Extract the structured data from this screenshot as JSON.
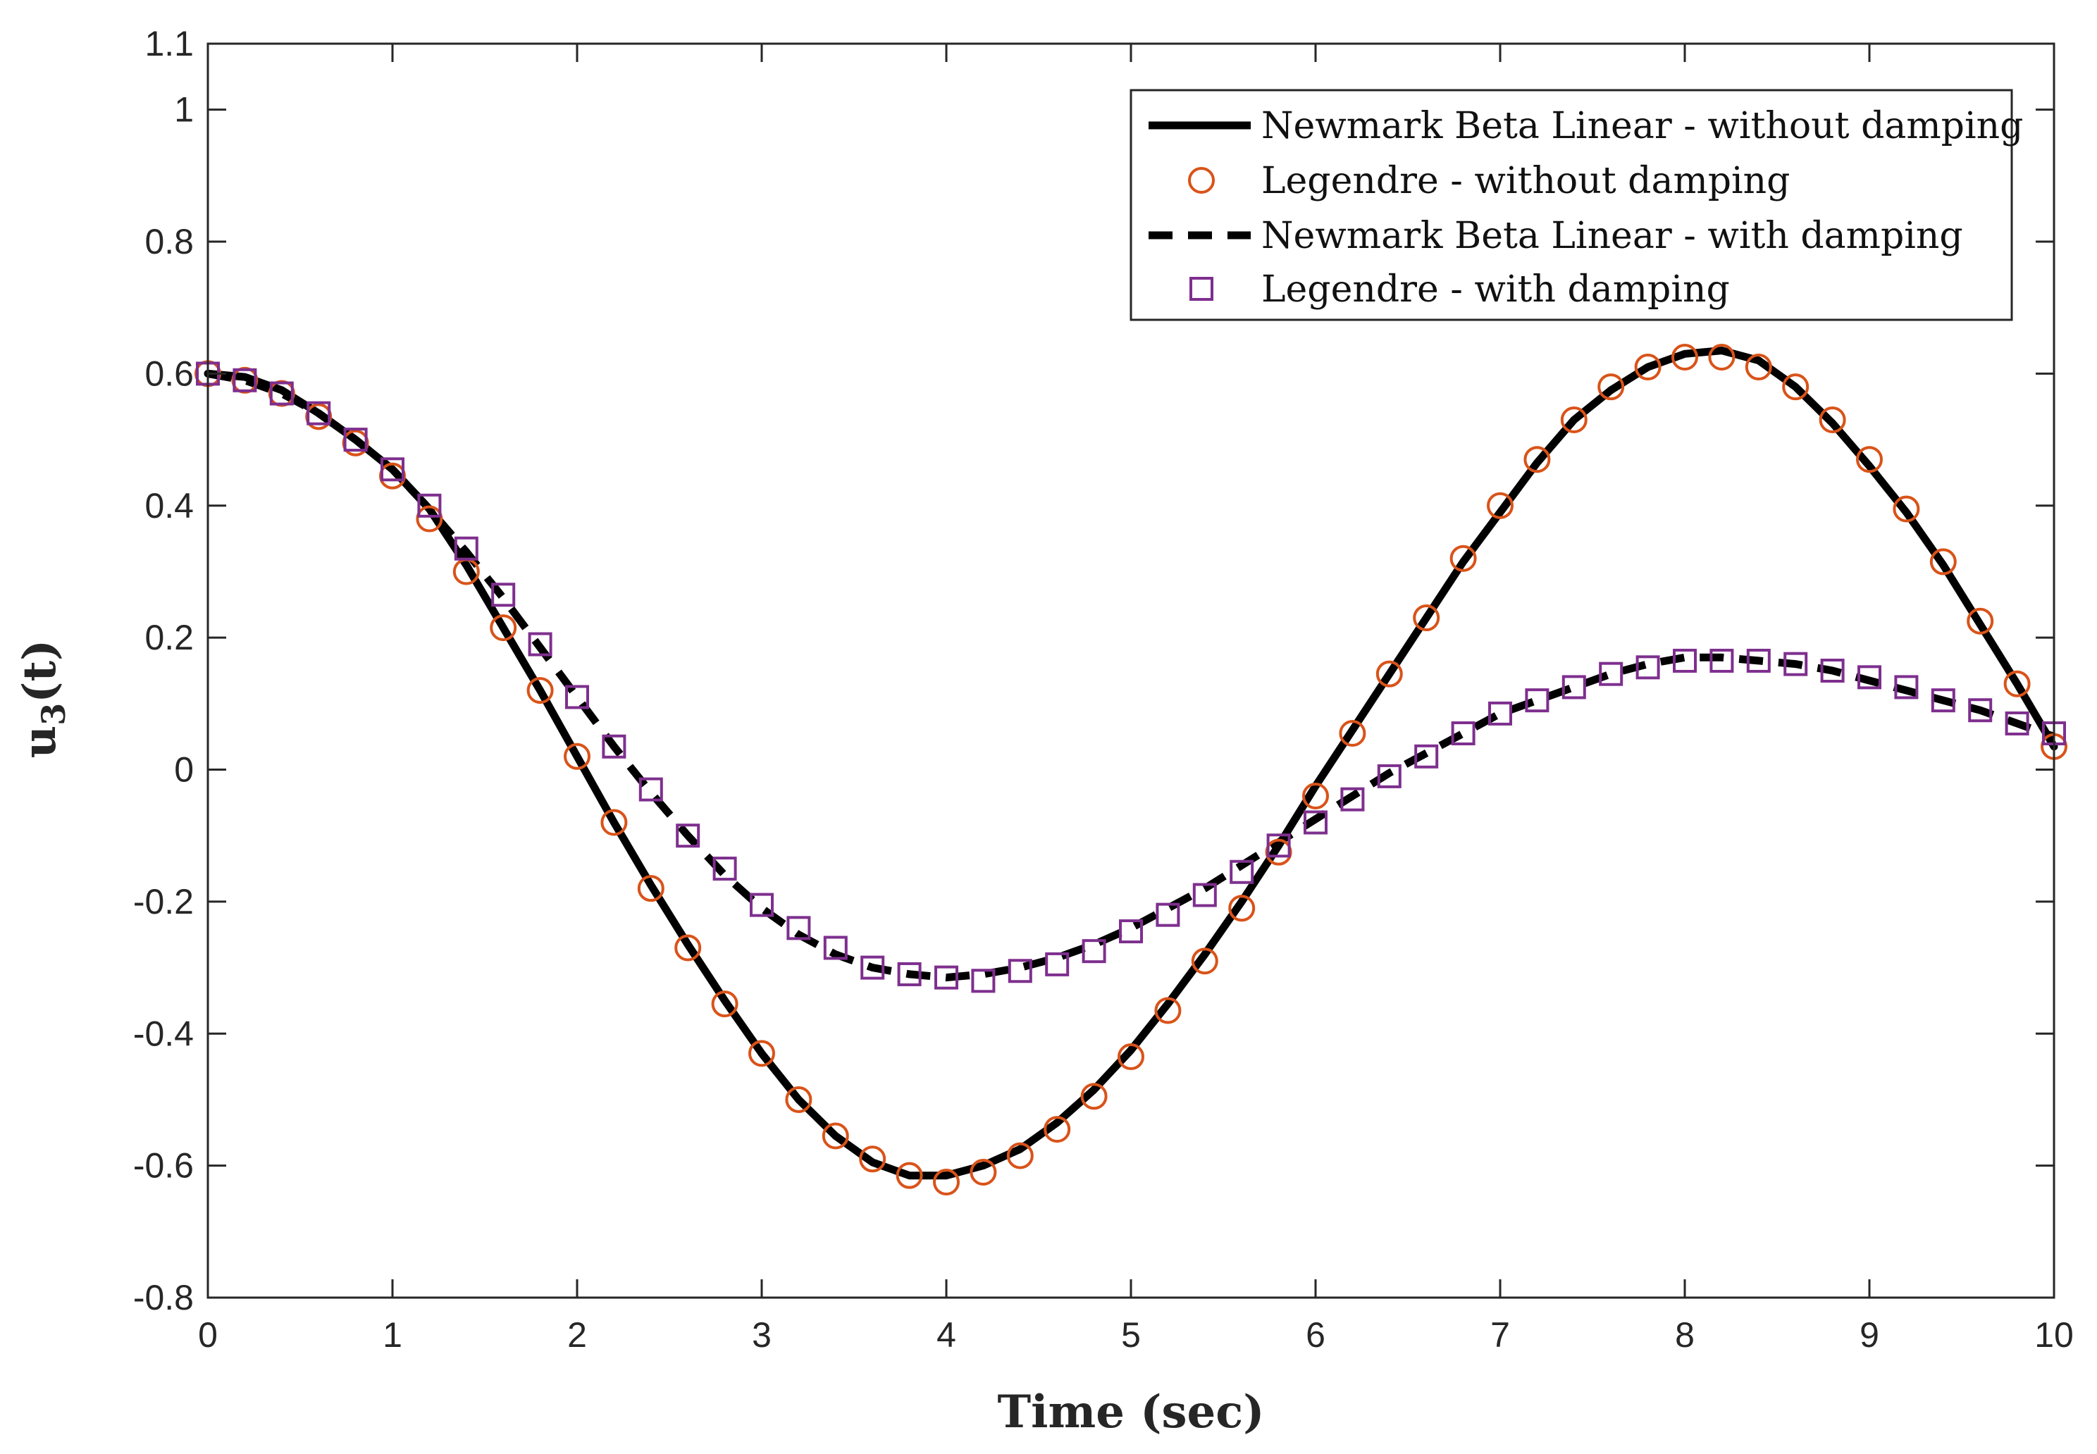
{
  "chart_data": {
    "type": "line",
    "title": "",
    "xlabel": "Time (sec)",
    "ylabel": {
      "base": "u",
      "sub": "3",
      "rest": "(t)"
    },
    "xlim": [
      0,
      10
    ],
    "ylim": [
      -0.8,
      1.1
    ],
    "x_ticks": [
      0,
      1,
      2,
      3,
      4,
      5,
      6,
      7,
      8,
      9,
      10
    ],
    "x_tick_labels": [
      "0",
      "1",
      "2",
      "3",
      "4",
      "5",
      "6",
      "7",
      "8",
      "9",
      "10"
    ],
    "y_ticks": [
      -0.8,
      -0.6,
      -0.4,
      -0.2,
      0,
      0.2,
      0.4,
      0.6,
      0.8,
      1,
      1.1
    ],
    "y_tick_labels": [
      "-0.8",
      "-0.6",
      "-0.4",
      "-0.2",
      "0",
      "0.2",
      "0.4",
      "0.6",
      "0.8",
      "1",
      "1.1"
    ],
    "grid": false,
    "legend_position": "top-right",
    "series": [
      {
        "name": "Newmark Beta Linear - without damping",
        "style": "solid-line",
        "color": "#000000",
        "x": [
          0,
          0.2,
          0.4,
          0.6,
          0.8,
          1.0,
          1.2,
          1.4,
          1.6,
          1.8,
          2.0,
          2.2,
          2.4,
          2.6,
          2.8,
          3.0,
          3.2,
          3.4,
          3.6,
          3.8,
          4.0,
          4.2,
          4.4,
          4.6,
          4.8,
          5.0,
          5.2,
          5.4,
          5.6,
          5.8,
          6.0,
          6.2,
          6.4,
          6.6,
          6.8,
          7.0,
          7.2,
          7.4,
          7.6,
          7.8,
          8.0,
          8.2,
          8.4,
          8.6,
          8.8,
          9.0,
          9.2,
          9.4,
          9.6,
          9.8,
          10.0
        ],
        "y": [
          0.6,
          0.595,
          0.575,
          0.54,
          0.5,
          0.455,
          0.395,
          0.31,
          0.215,
          0.12,
          0.02,
          -0.08,
          -0.175,
          -0.265,
          -0.35,
          -0.43,
          -0.5,
          -0.555,
          -0.595,
          -0.615,
          -0.615,
          -0.6,
          -0.575,
          -0.535,
          -0.485,
          -0.425,
          -0.355,
          -0.28,
          -0.2,
          -0.115,
          -0.025,
          0.06,
          0.145,
          0.23,
          0.315,
          0.39,
          0.465,
          0.53,
          0.575,
          0.61,
          0.63,
          0.635,
          0.62,
          0.58,
          0.525,
          0.46,
          0.39,
          0.31,
          0.22,
          0.13,
          0.035
        ]
      },
      {
        "name": "Legendre - without damping",
        "style": "circle-markers",
        "color": "#D95319",
        "x": [
          0,
          0.2,
          0.4,
          0.6,
          0.8,
          1.0,
          1.2,
          1.4,
          1.6,
          1.8,
          2.0,
          2.2,
          2.4,
          2.6,
          2.8,
          3.0,
          3.2,
          3.4,
          3.6,
          3.8,
          4.0,
          4.2,
          4.4,
          4.6,
          4.8,
          5.0,
          5.2,
          5.4,
          5.6,
          5.8,
          6.0,
          6.2,
          6.4,
          6.6,
          6.8,
          7.0,
          7.2,
          7.4,
          7.6,
          7.8,
          8.0,
          8.2,
          8.4,
          8.6,
          8.8,
          9.0,
          9.2,
          9.4,
          9.6,
          9.8,
          10.0
        ],
        "y": [
          0.6,
          0.59,
          0.57,
          0.535,
          0.495,
          0.445,
          0.38,
          0.3,
          0.215,
          0.12,
          0.02,
          -0.08,
          -0.18,
          -0.27,
          -0.355,
          -0.43,
          -0.5,
          -0.555,
          -0.59,
          -0.615,
          -0.625,
          -0.61,
          -0.585,
          -0.545,
          -0.495,
          -0.435,
          -0.365,
          -0.29,
          -0.21,
          -0.125,
          -0.04,
          0.055,
          0.145,
          0.23,
          0.32,
          0.4,
          0.47,
          0.53,
          0.58,
          0.61,
          0.625,
          0.625,
          0.61,
          0.58,
          0.53,
          0.47,
          0.395,
          0.315,
          0.225,
          0.13,
          0.035
        ]
      },
      {
        "name": "Newmark Beta Linear - with damping",
        "style": "dashed-line",
        "color": "#000000",
        "x": [
          0,
          0.2,
          0.4,
          0.6,
          0.8,
          1.0,
          1.2,
          1.4,
          1.6,
          1.8,
          2.0,
          2.2,
          2.4,
          2.6,
          2.8,
          3.0,
          3.2,
          3.4,
          3.6,
          3.8,
          4.0,
          4.2,
          4.4,
          4.6,
          4.8,
          5.0,
          5.2,
          5.4,
          5.6,
          5.8,
          6.0,
          6.2,
          6.4,
          6.6,
          6.8,
          7.0,
          7.2,
          7.4,
          7.6,
          7.8,
          8.0,
          8.2,
          8.4,
          8.6,
          8.8,
          9.0,
          9.2,
          9.4,
          9.6,
          9.8,
          10.0
        ],
        "y": [
          0.6,
          0.59,
          0.57,
          0.54,
          0.5,
          0.455,
          0.395,
          0.33,
          0.26,
          0.185,
          0.11,
          0.035,
          -0.035,
          -0.1,
          -0.16,
          -0.21,
          -0.25,
          -0.28,
          -0.3,
          -0.31,
          -0.315,
          -0.31,
          -0.3,
          -0.285,
          -0.265,
          -0.24,
          -0.21,
          -0.18,
          -0.145,
          -0.11,
          -0.075,
          -0.04,
          -0.005,
          0.025,
          0.055,
          0.085,
          0.105,
          0.125,
          0.145,
          0.16,
          0.17,
          0.17,
          0.165,
          0.16,
          0.15,
          0.135,
          0.12,
          0.105,
          0.09,
          0.07,
          0.05
        ]
      },
      {
        "name": "Legendre - with damping",
        "style": "square-markers",
        "color": "#7E2F8E",
        "x": [
          0,
          0.2,
          0.4,
          0.6,
          0.8,
          1.0,
          1.2,
          1.4,
          1.6,
          1.8,
          2.0,
          2.2,
          2.4,
          2.6,
          2.8,
          3.0,
          3.2,
          3.4,
          3.6,
          3.8,
          4.0,
          4.2,
          4.4,
          4.6,
          4.8,
          5.0,
          5.2,
          5.4,
          5.6,
          5.8,
          6.0,
          6.2,
          6.4,
          6.6,
          6.8,
          7.0,
          7.2,
          7.4,
          7.6,
          7.8,
          8.0,
          8.2,
          8.4,
          8.6,
          8.8,
          9.0,
          9.2,
          9.4,
          9.6,
          9.8,
          10.0
        ],
        "y": [
          0.6,
          0.59,
          0.57,
          0.54,
          0.5,
          0.455,
          0.4,
          0.335,
          0.265,
          0.19,
          0.11,
          0.035,
          -0.03,
          -0.1,
          -0.15,
          -0.205,
          -0.24,
          -0.27,
          -0.3,
          -0.31,
          -0.315,
          -0.32,
          -0.305,
          -0.295,
          -0.275,
          -0.245,
          -0.22,
          -0.19,
          -0.155,
          -0.115,
          -0.08,
          -0.045,
          -0.01,
          0.02,
          0.055,
          0.085,
          0.105,
          0.125,
          0.145,
          0.155,
          0.165,
          0.165,
          0.165,
          0.16,
          0.15,
          0.14,
          0.125,
          0.105,
          0.09,
          0.07,
          0.055
        ]
      }
    ]
  }
}
